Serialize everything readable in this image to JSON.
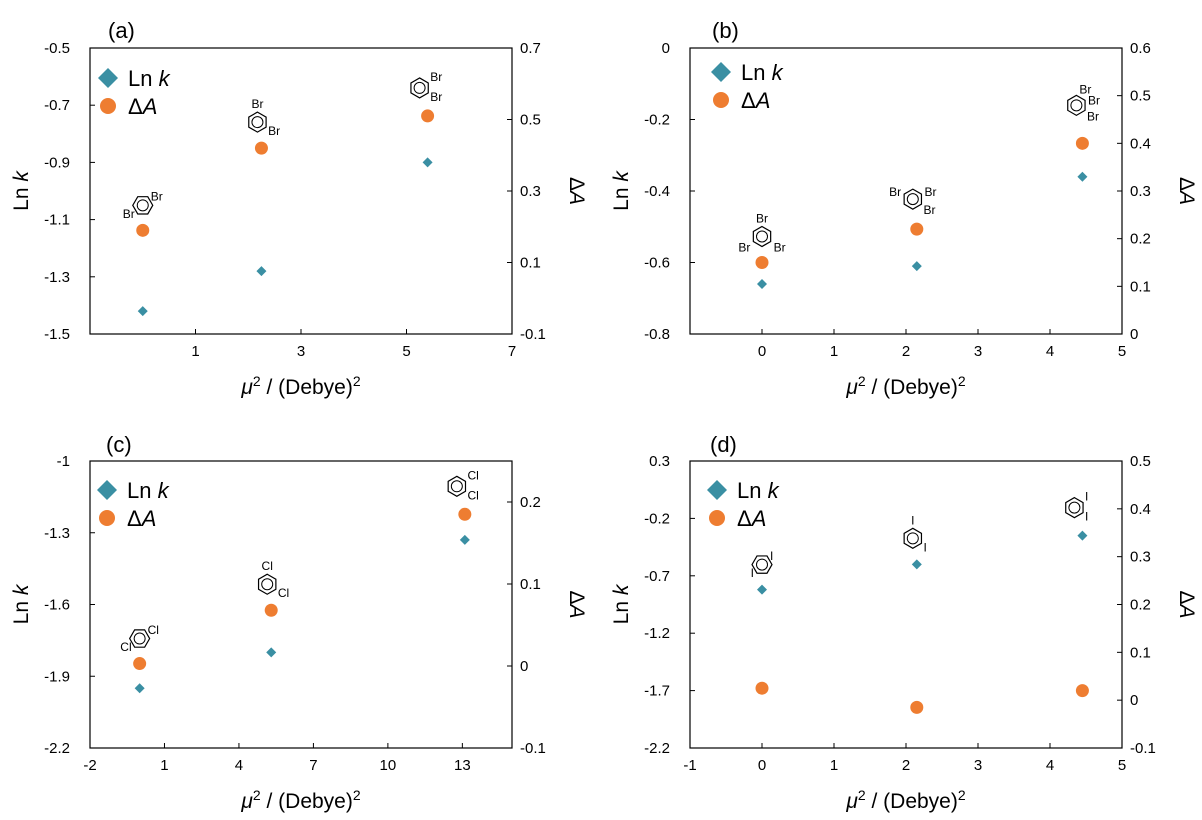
{
  "colors": {
    "lnk": "#3a8fa3",
    "dA": "#ee7d31",
    "axis": "#000000"
  },
  "chart_data": [
    {
      "panel": "(a)",
      "type": "scatter",
      "xlabel_sym": "μ",
      "xlabel_sup": "2",
      "xlabel_rest": " / (Debye)",
      "xlabel_sup2": "2",
      "ylabel_main": "Ln ",
      "ylabel_italic": "k",
      "y2label_main": "Δ",
      "y2label_italic": "A",
      "xlim": [
        -1,
        7
      ],
      "ylim": [
        -1.5,
        -0.5
      ],
      "y2lim": [
        -0.1,
        0.7
      ],
      "xticks": [
        1,
        3,
        5,
        7
      ],
      "yticks": [
        -1.5,
        -1.3,
        -1.1,
        -0.9,
        -0.7,
        -0.5
      ],
      "y2ticks": [
        -0.1,
        0.1,
        0.3,
        0.5,
        0.7
      ],
      "xtick_labels": [
        "1",
        "3",
        "5",
        "7"
      ],
      "ytick_labels": [
        "-1.5",
        "-1.3",
        "-1.1",
        "-0.9",
        "-0.7",
        "-0.5"
      ],
      "y2tick_labels": [
        "-0.1",
        "0.1",
        "0.3",
        "0.5",
        "0.7"
      ],
      "series": [
        {
          "name": "Ln k",
          "axis": "left",
          "marker": "diamond",
          "x": [
            0,
            2.25,
            5.4
          ],
          "y": [
            -1.42,
            -1.28,
            -0.9
          ]
        },
        {
          "name": "ΔA",
          "axis": "right",
          "marker": "circle",
          "x": [
            0,
            2.25,
            5.4
          ],
          "y": [
            0.19,
            0.42,
            0.51
          ]
        }
      ],
      "molecules": [
        {
          "labels": [
            "Br",
            "Br"
          ],
          "pattern": "para",
          "x": 0,
          "y2": 0.19
        },
        {
          "labels": [
            "Br",
            "Br"
          ],
          "pattern": "meta",
          "x": 2.25,
          "y2": 0.42
        },
        {
          "labels": [
            "Br",
            "Br"
          ],
          "pattern": "ortho",
          "x": 5.4,
          "y2": 0.51
        }
      ]
    },
    {
      "panel": "(b)",
      "type": "scatter",
      "xlabel_sym": "μ",
      "xlabel_sup": "2",
      "xlabel_rest": " / (Debye)",
      "xlabel_sup2": "2",
      "ylabel_main": "Ln ",
      "ylabel_italic": "k",
      "y2label_main": "Δ",
      "y2label_italic": "A",
      "xlim": [
        -1,
        5
      ],
      "ylim": [
        -0.8,
        0
      ],
      "y2lim": [
        0,
        0.6
      ],
      "xticks": [
        0,
        1,
        2,
        3,
        4,
        5
      ],
      "yticks": [
        -0.8,
        -0.6,
        -0.4,
        -0.2,
        0
      ],
      "y2ticks": [
        0,
        0.1,
        0.2,
        0.3,
        0.4,
        0.5,
        0.6
      ],
      "xtick_labels": [
        "0",
        "1",
        "2",
        "3",
        "4",
        "5"
      ],
      "ytick_labels": [
        "-0.8",
        "-0.6",
        "-0.4",
        "-0.2",
        "0"
      ],
      "y2tick_labels": [
        "0",
        "0.1",
        "0.2",
        "0.3",
        "0.4",
        "0.5",
        "0.6"
      ],
      "series": [
        {
          "name": "Ln k",
          "axis": "left",
          "marker": "diamond",
          "x": [
            0,
            2.15,
            4.45
          ],
          "y": [
            -0.66,
            -0.61,
            -0.36
          ]
        },
        {
          "name": "ΔA",
          "axis": "right",
          "marker": "circle",
          "x": [
            0,
            2.15,
            4.45
          ],
          "y": [
            0.15,
            0.22,
            0.4
          ]
        }
      ],
      "molecules": [
        {
          "labels": [
            "Br",
            "Br",
            "Br"
          ],
          "pattern": "sym",
          "x": 0,
          "y2": 0.15
        },
        {
          "labels": [
            "Br",
            "Br",
            "Br"
          ],
          "pattern": "asym",
          "x": 2.15,
          "y2": 0.22
        },
        {
          "labels": [
            "Br",
            "Br",
            "Br"
          ],
          "pattern": "vic",
          "x": 4.45,
          "y2": 0.4
        }
      ]
    },
    {
      "panel": "(c)",
      "type": "scatter",
      "xlabel_sym": "μ",
      "xlabel_sup": "2",
      "xlabel_rest": " / (Debye)",
      "xlabel_sup2": "2",
      "ylabel_main": "Ln ",
      "ylabel_italic": "k",
      "y2label_main": "Δ",
      "y2label_italic": "A",
      "xlim": [
        -2,
        15
      ],
      "ylim": [
        -2.2,
        -1
      ],
      "y2lim": [
        -0.1,
        0.25
      ],
      "xticks": [
        -2,
        1,
        4,
        7,
        10,
        13
      ],
      "yticks": [
        -2.2,
        -1.9,
        -1.6,
        -1.3,
        -1
      ],
      "y2ticks": [
        -0.1,
        0,
        0.1,
        0.2
      ],
      "xtick_labels": [
        "-2",
        "1",
        "4",
        "7",
        "10",
        "13"
      ],
      "ytick_labels": [
        "-2.2",
        "-1.9",
        "-1.6",
        "-1.3",
        "-1"
      ],
      "y2tick_labels": [
        "-0.1",
        "0",
        "0.1",
        "0.2"
      ],
      "series": [
        {
          "name": "Ln k",
          "axis": "left",
          "marker": "diamond",
          "x": [
            0,
            5.3,
            13.1
          ],
          "y": [
            -1.95,
            -1.8,
            -1.33
          ]
        },
        {
          "name": "ΔA",
          "axis": "right",
          "marker": "circle",
          "x": [
            0,
            5.3,
            13.1
          ],
          "y": [
            0.003,
            0.068,
            0.185
          ]
        }
      ],
      "molecules": [
        {
          "labels": [
            "Cl",
            "Cl"
          ],
          "pattern": "para",
          "x": 0,
          "y2": 0.003
        },
        {
          "labels": [
            "Cl",
            "Cl"
          ],
          "pattern": "meta",
          "x": 5.3,
          "y2": 0.068
        },
        {
          "labels": [
            "Cl",
            "Cl"
          ],
          "pattern": "ortho",
          "x": 13.1,
          "y2": 0.185
        }
      ]
    },
    {
      "panel": "(d)",
      "type": "scatter",
      "xlabel_sym": "μ",
      "xlabel_sup": "2",
      "xlabel_rest": " / (Debye)",
      "xlabel_sup2": "2",
      "ylabel_main": "Ln ",
      "ylabel_italic": "k",
      "y2label_main": "Δ",
      "y2label_italic": "A",
      "xlim": [
        -1,
        5
      ],
      "ylim": [
        -2.2,
        0.3
      ],
      "y2lim": [
        -0.1,
        0.5
      ],
      "xticks": [
        -1,
        0,
        1,
        2,
        3,
        4,
        5
      ],
      "yticks": [
        -2.2,
        -1.7,
        -1.2,
        -0.7,
        -0.2,
        0.3
      ],
      "y2ticks": [
        -0.1,
        0,
        0.1,
        0.2,
        0.3,
        0.4,
        0.5
      ],
      "xtick_labels": [
        "-1",
        "0",
        "1",
        "2",
        "3",
        "4",
        "5"
      ],
      "ytick_labels": [
        "-2.2",
        "-1.7",
        "-1.2",
        "-0.7",
        "-0.2",
        "0.3"
      ],
      "y2tick_labels": [
        "-0.1",
        "0",
        "0.1",
        "0.2",
        "0.3",
        "0.4",
        "0.5"
      ],
      "series": [
        {
          "name": "Ln k",
          "axis": "left",
          "marker": "diamond",
          "x": [
            0,
            2.15,
            4.45
          ],
          "y": [
            -0.82,
            -0.6,
            -0.35
          ]
        },
        {
          "name": "ΔA",
          "axis": "right",
          "marker": "circle",
          "x": [
            0,
            2.15,
            4.45
          ],
          "y": [
            0.025,
            -0.015,
            0.02
          ]
        }
      ],
      "molecules": [
        {
          "labels": [
            "I",
            "I"
          ],
          "pattern": "para",
          "x": 0,
          "y": -0.82
        },
        {
          "labels": [
            "I",
            "I"
          ],
          "pattern": "meta",
          "x": 2.15,
          "y": -0.6
        },
        {
          "labels": [
            "I",
            "I"
          ],
          "pattern": "ortho",
          "x": 4.45,
          "y": -0.35
        }
      ]
    }
  ]
}
